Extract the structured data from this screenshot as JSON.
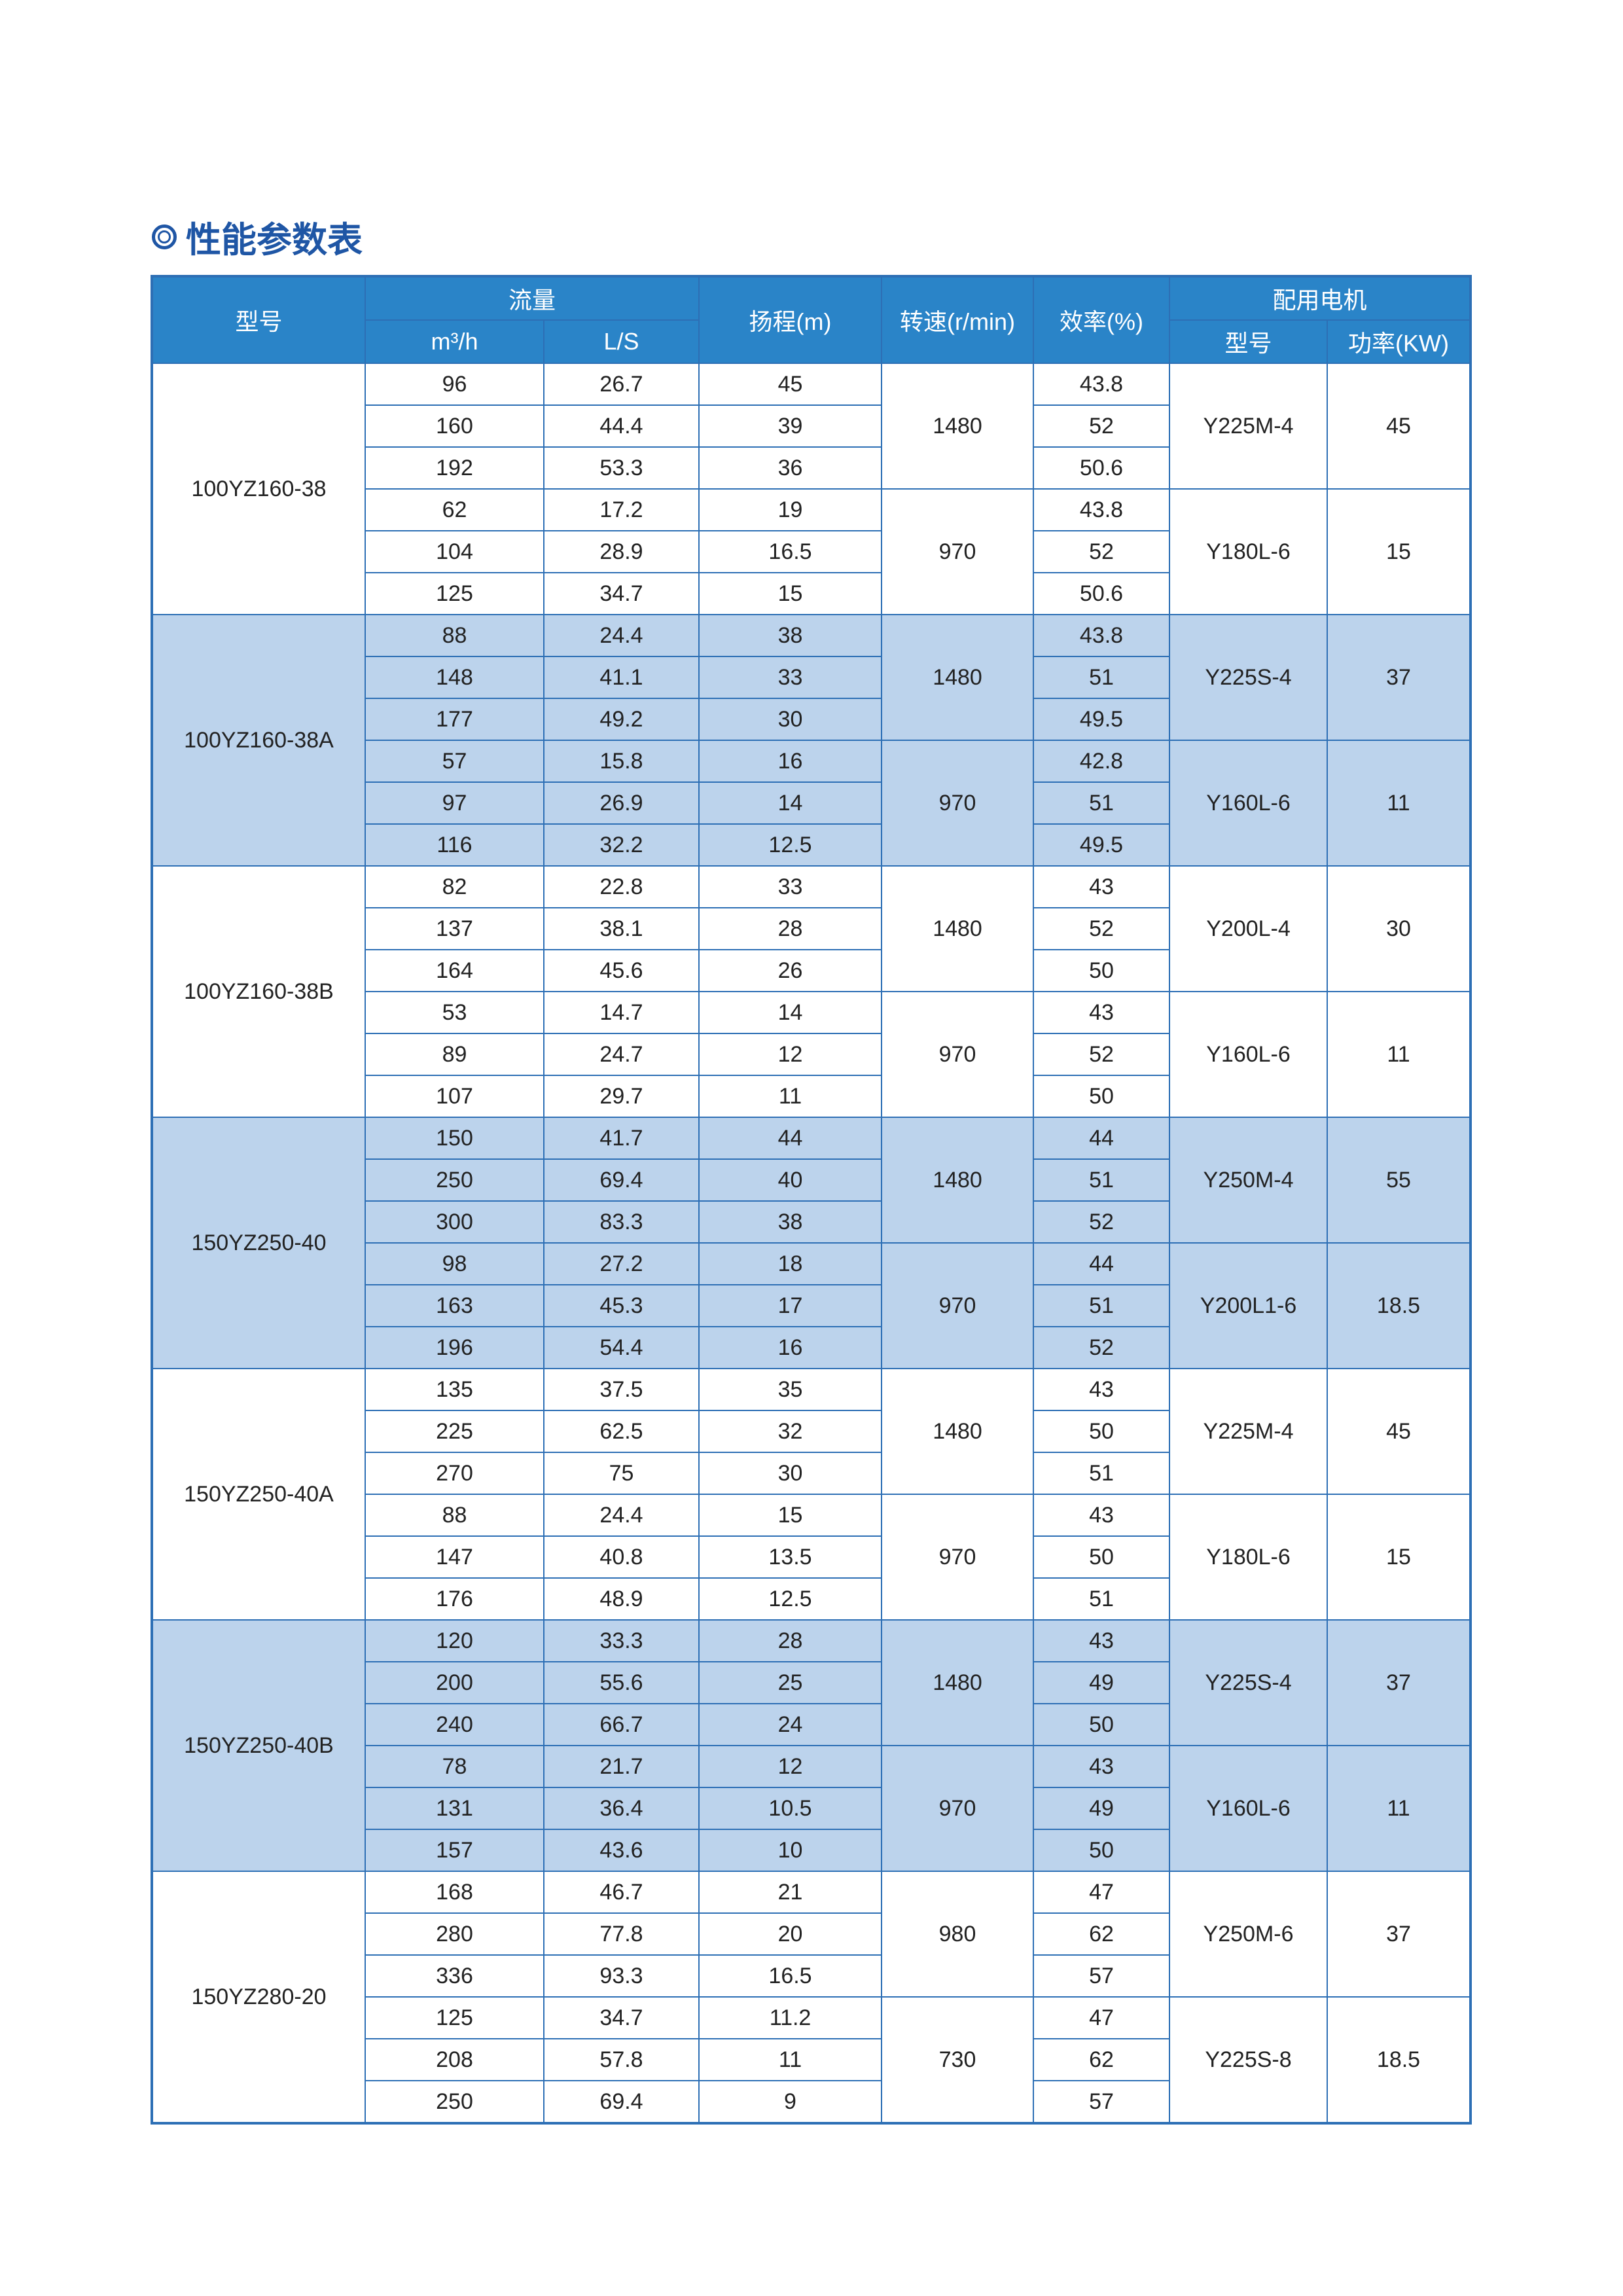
{
  "title": "性能参数表",
  "title_icon": "double-circle-icon",
  "colors": {
    "header": "#2a84c8",
    "shade": "#bcd3ec",
    "border": "#2d6fb5",
    "title": "#1f56a5"
  },
  "headers": {
    "model": "型号",
    "flow": "流量",
    "flow_m3h": "m³/h",
    "flow_ls": "L/S",
    "head": "扬程(m)",
    "speed": "转速(r/min)",
    "efficiency": "效率(%)",
    "motor": "配用电机",
    "motor_model": "型号",
    "motor_power": "功率(KW)"
  },
  "groups": [
    {
      "model": "100YZ160-38",
      "speeds": [
        {
          "rpm": "1480",
          "motor": "Y225M-4",
          "power": "45",
          "rows": [
            [
              "96",
              "26.7",
              "45",
              "43.8"
            ],
            [
              "160",
              "44.4",
              "39",
              "52"
            ],
            [
              "192",
              "53.3",
              "36",
              "50.6"
            ]
          ]
        },
        {
          "rpm": "970",
          "motor": "Y180L-6",
          "power": "15",
          "rows": [
            [
              "62",
              "17.2",
              "19",
              "43.8"
            ],
            [
              "104",
              "28.9",
              "16.5",
              "52"
            ],
            [
              "125",
              "34.7",
              "15",
              "50.6"
            ]
          ]
        }
      ]
    },
    {
      "model": "100YZ160-38A",
      "speeds": [
        {
          "rpm": "1480",
          "motor": "Y225S-4",
          "power": "37",
          "rows": [
            [
              "88",
              "24.4",
              "38",
              "43.8"
            ],
            [
              "148",
              "41.1",
              "33",
              "51"
            ],
            [
              "177",
              "49.2",
              "30",
              "49.5"
            ]
          ]
        },
        {
          "rpm": "970",
          "motor": "Y160L-6",
          "power": "11",
          "rows": [
            [
              "57",
              "15.8",
              "16",
              "42.8"
            ],
            [
              "97",
              "26.9",
              "14",
              "51"
            ],
            [
              "116",
              "32.2",
              "12.5",
              "49.5"
            ]
          ]
        }
      ]
    },
    {
      "model": "100YZ160-38B",
      "speeds": [
        {
          "rpm": "1480",
          "motor": "Y200L-4",
          "power": "30",
          "rows": [
            [
              "82",
              "22.8",
              "33",
              "43"
            ],
            [
              "137",
              "38.1",
              "28",
              "52"
            ],
            [
              "164",
              "45.6",
              "26",
              "50"
            ]
          ]
        },
        {
          "rpm": "970",
          "motor": "Y160L-6",
          "power": "11",
          "rows": [
            [
              "53",
              "14.7",
              "14",
              "43"
            ],
            [
              "89",
              "24.7",
              "12",
              "52"
            ],
            [
              "107",
              "29.7",
              "11",
              "50"
            ]
          ]
        }
      ]
    },
    {
      "model": "150YZ250-40",
      "speeds": [
        {
          "rpm": "1480",
          "motor": "Y250M-4",
          "power": "55",
          "rows": [
            [
              "150",
              "41.7",
              "44",
              "44"
            ],
            [
              "250",
              "69.4",
              "40",
              "51"
            ],
            [
              "300",
              "83.3",
              "38",
              "52"
            ]
          ]
        },
        {
          "rpm": "970",
          "motor": "Y200L1-6",
          "power": "18.5",
          "rows": [
            [
              "98",
              "27.2",
              "18",
              "44"
            ],
            [
              "163",
              "45.3",
              "17",
              "51"
            ],
            [
              "196",
              "54.4",
              "16",
              "52"
            ]
          ]
        }
      ]
    },
    {
      "model": "150YZ250-40A",
      "speeds": [
        {
          "rpm": "1480",
          "motor": "Y225M-4",
          "power": "45",
          "rows": [
            [
              "135",
              "37.5",
              "35",
              "43"
            ],
            [
              "225",
              "62.5",
              "32",
              "50"
            ],
            [
              "270",
              "75",
              "30",
              "51"
            ]
          ]
        },
        {
          "rpm": "970",
          "motor": "Y180L-6",
          "power": "15",
          "rows": [
            [
              "88",
              "24.4",
              "15",
              "43"
            ],
            [
              "147",
              "40.8",
              "13.5",
              "50"
            ],
            [
              "176",
              "48.9",
              "12.5",
              "51"
            ]
          ]
        }
      ]
    },
    {
      "model": "150YZ250-40B",
      "speeds": [
        {
          "rpm": "1480",
          "motor": "Y225S-4",
          "power": "37",
          "rows": [
            [
              "120",
              "33.3",
              "28",
              "43"
            ],
            [
              "200",
              "55.6",
              "25",
              "49"
            ],
            [
              "240",
              "66.7",
              "24",
              "50"
            ]
          ]
        },
        {
          "rpm": "970",
          "motor": "Y160L-6",
          "power": "11",
          "rows": [
            [
              "78",
              "21.7",
              "12",
              "43"
            ],
            [
              "131",
              "36.4",
              "10.5",
              "49"
            ],
            [
              "157",
              "43.6",
              "10",
              "50"
            ]
          ]
        }
      ]
    },
    {
      "model": "150YZ280-20",
      "speeds": [
        {
          "rpm": "980",
          "motor": "Y250M-6",
          "power": "37",
          "rows": [
            [
              "168",
              "46.7",
              "21",
              "47"
            ],
            [
              "280",
              "77.8",
              "20",
              "62"
            ],
            [
              "336",
              "93.3",
              "16.5",
              "57"
            ]
          ]
        },
        {
          "rpm": "730",
          "motor": "Y225S-8",
          "power": "18.5",
          "rows": [
            [
              "125",
              "34.7",
              "11.2",
              "47"
            ],
            [
              "208",
              "57.8",
              "11",
              "62"
            ],
            [
              "250",
              "69.4",
              "9",
              "57"
            ]
          ]
        }
      ]
    }
  ]
}
